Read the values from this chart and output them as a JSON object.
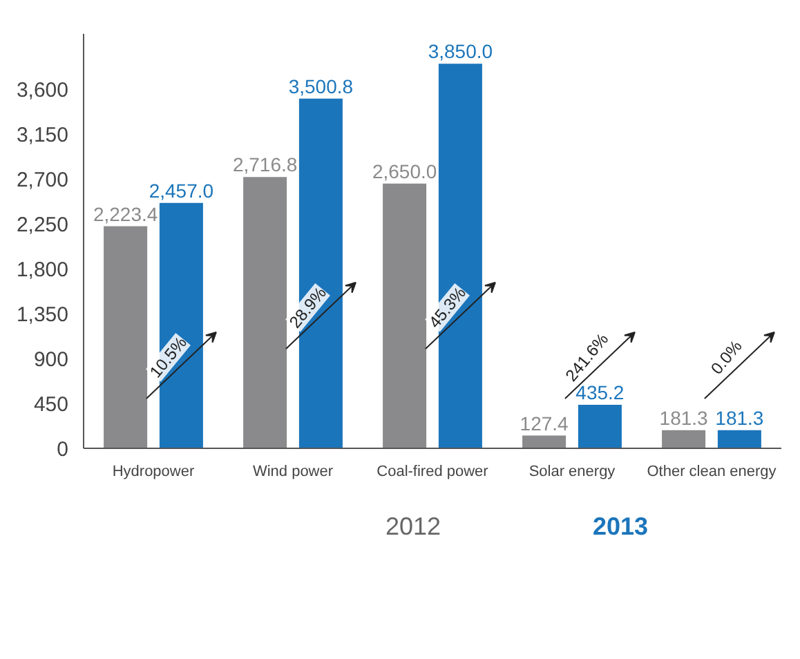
{
  "chart_data": {
    "type": "bar",
    "categories": [
      "Hydropower",
      "Wind power",
      "Coal-fired power",
      "Solar energy",
      "Other clean energy"
    ],
    "series": [
      {
        "name": "2012",
        "color": "#8a8a8c",
        "values": [
          2223.4,
          2716.8,
          2650.0,
          127.4,
          181.3
        ],
        "value_labels": [
          "2,223.4",
          "2,716.8",
          "2,650.0",
          "127.4",
          "181.3"
        ]
      },
      {
        "name": "2013",
        "color": "#1b75bb",
        "values": [
          2457.0,
          3500.8,
          3850.0,
          435.2,
          181.3
        ],
        "value_labels": [
          "2,457.0",
          "3,500.8",
          "3,850.0",
          "435.2",
          "181.3"
        ]
      }
    ],
    "ylim": [
      0,
      4150
    ],
    "yticks": [
      {
        "value": 0,
        "label": "0"
      },
      {
        "value": 450,
        "label": "450"
      },
      {
        "value": 900,
        "label": "900"
      },
      {
        "value": 1350,
        "label": "1,350"
      },
      {
        "value": 1800,
        "label": "1,800"
      },
      {
        "value": 2250,
        "label": "2,250"
      },
      {
        "value": 2700,
        "label": "2,700"
      },
      {
        "value": 3150,
        "label": "3,150"
      },
      {
        "value": 3600,
        "label": "3,600"
      }
    ],
    "grid": false,
    "legend": "bottom",
    "annotations": [
      "10.5%",
      "28.9%",
      "45.3%",
      "241.6%",
      "0.0%"
    ]
  }
}
